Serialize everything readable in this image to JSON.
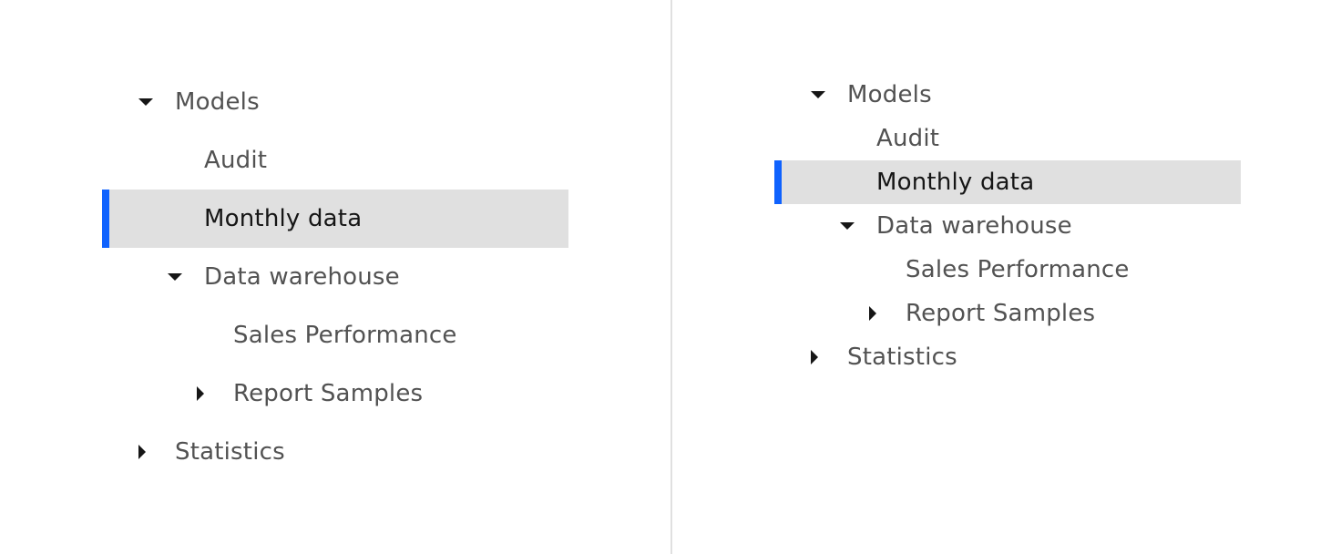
{
  "default_tree": {
    "nodes": [
      {
        "label": "Models",
        "level": 0,
        "caret": "down",
        "selected": false
      },
      {
        "label": "Audit",
        "level": 1,
        "caret": "none",
        "selected": false
      },
      {
        "label": "Monthly data",
        "level": 1,
        "caret": "none",
        "selected": true
      },
      {
        "label": "Data warehouse",
        "level": 1,
        "caret": "down",
        "selected": false
      },
      {
        "label": "Sales Performance",
        "level": 2,
        "caret": "none",
        "selected": false
      },
      {
        "label": "Report Samples",
        "level": 2,
        "caret": "right",
        "selected": false
      },
      {
        "label": "Statistics",
        "level": 0,
        "caret": "right",
        "selected": false
      }
    ]
  },
  "compact_tree": {
    "nodes": [
      {
        "label": "Models",
        "level": 0,
        "caret": "down",
        "selected": false
      },
      {
        "label": "Audit",
        "level": 1,
        "caret": "none",
        "selected": false
      },
      {
        "label": "Monthly data",
        "level": 1,
        "caret": "none",
        "selected": true
      },
      {
        "label": "Data warehouse",
        "level": 1,
        "caret": "down",
        "selected": false
      },
      {
        "label": "Sales Performance",
        "level": 2,
        "caret": "none",
        "selected": false
      },
      {
        "label": "Report Samples",
        "level": 2,
        "caret": "right",
        "selected": false
      },
      {
        "label": "Statistics",
        "level": 0,
        "caret": "right",
        "selected": false
      }
    ]
  },
  "colors": {
    "selection_background": "#e0e0e0",
    "selection_indicator": "#0f62fe",
    "text": "#525252",
    "selected_text": "#161616",
    "divider": "#e0e0e0"
  }
}
